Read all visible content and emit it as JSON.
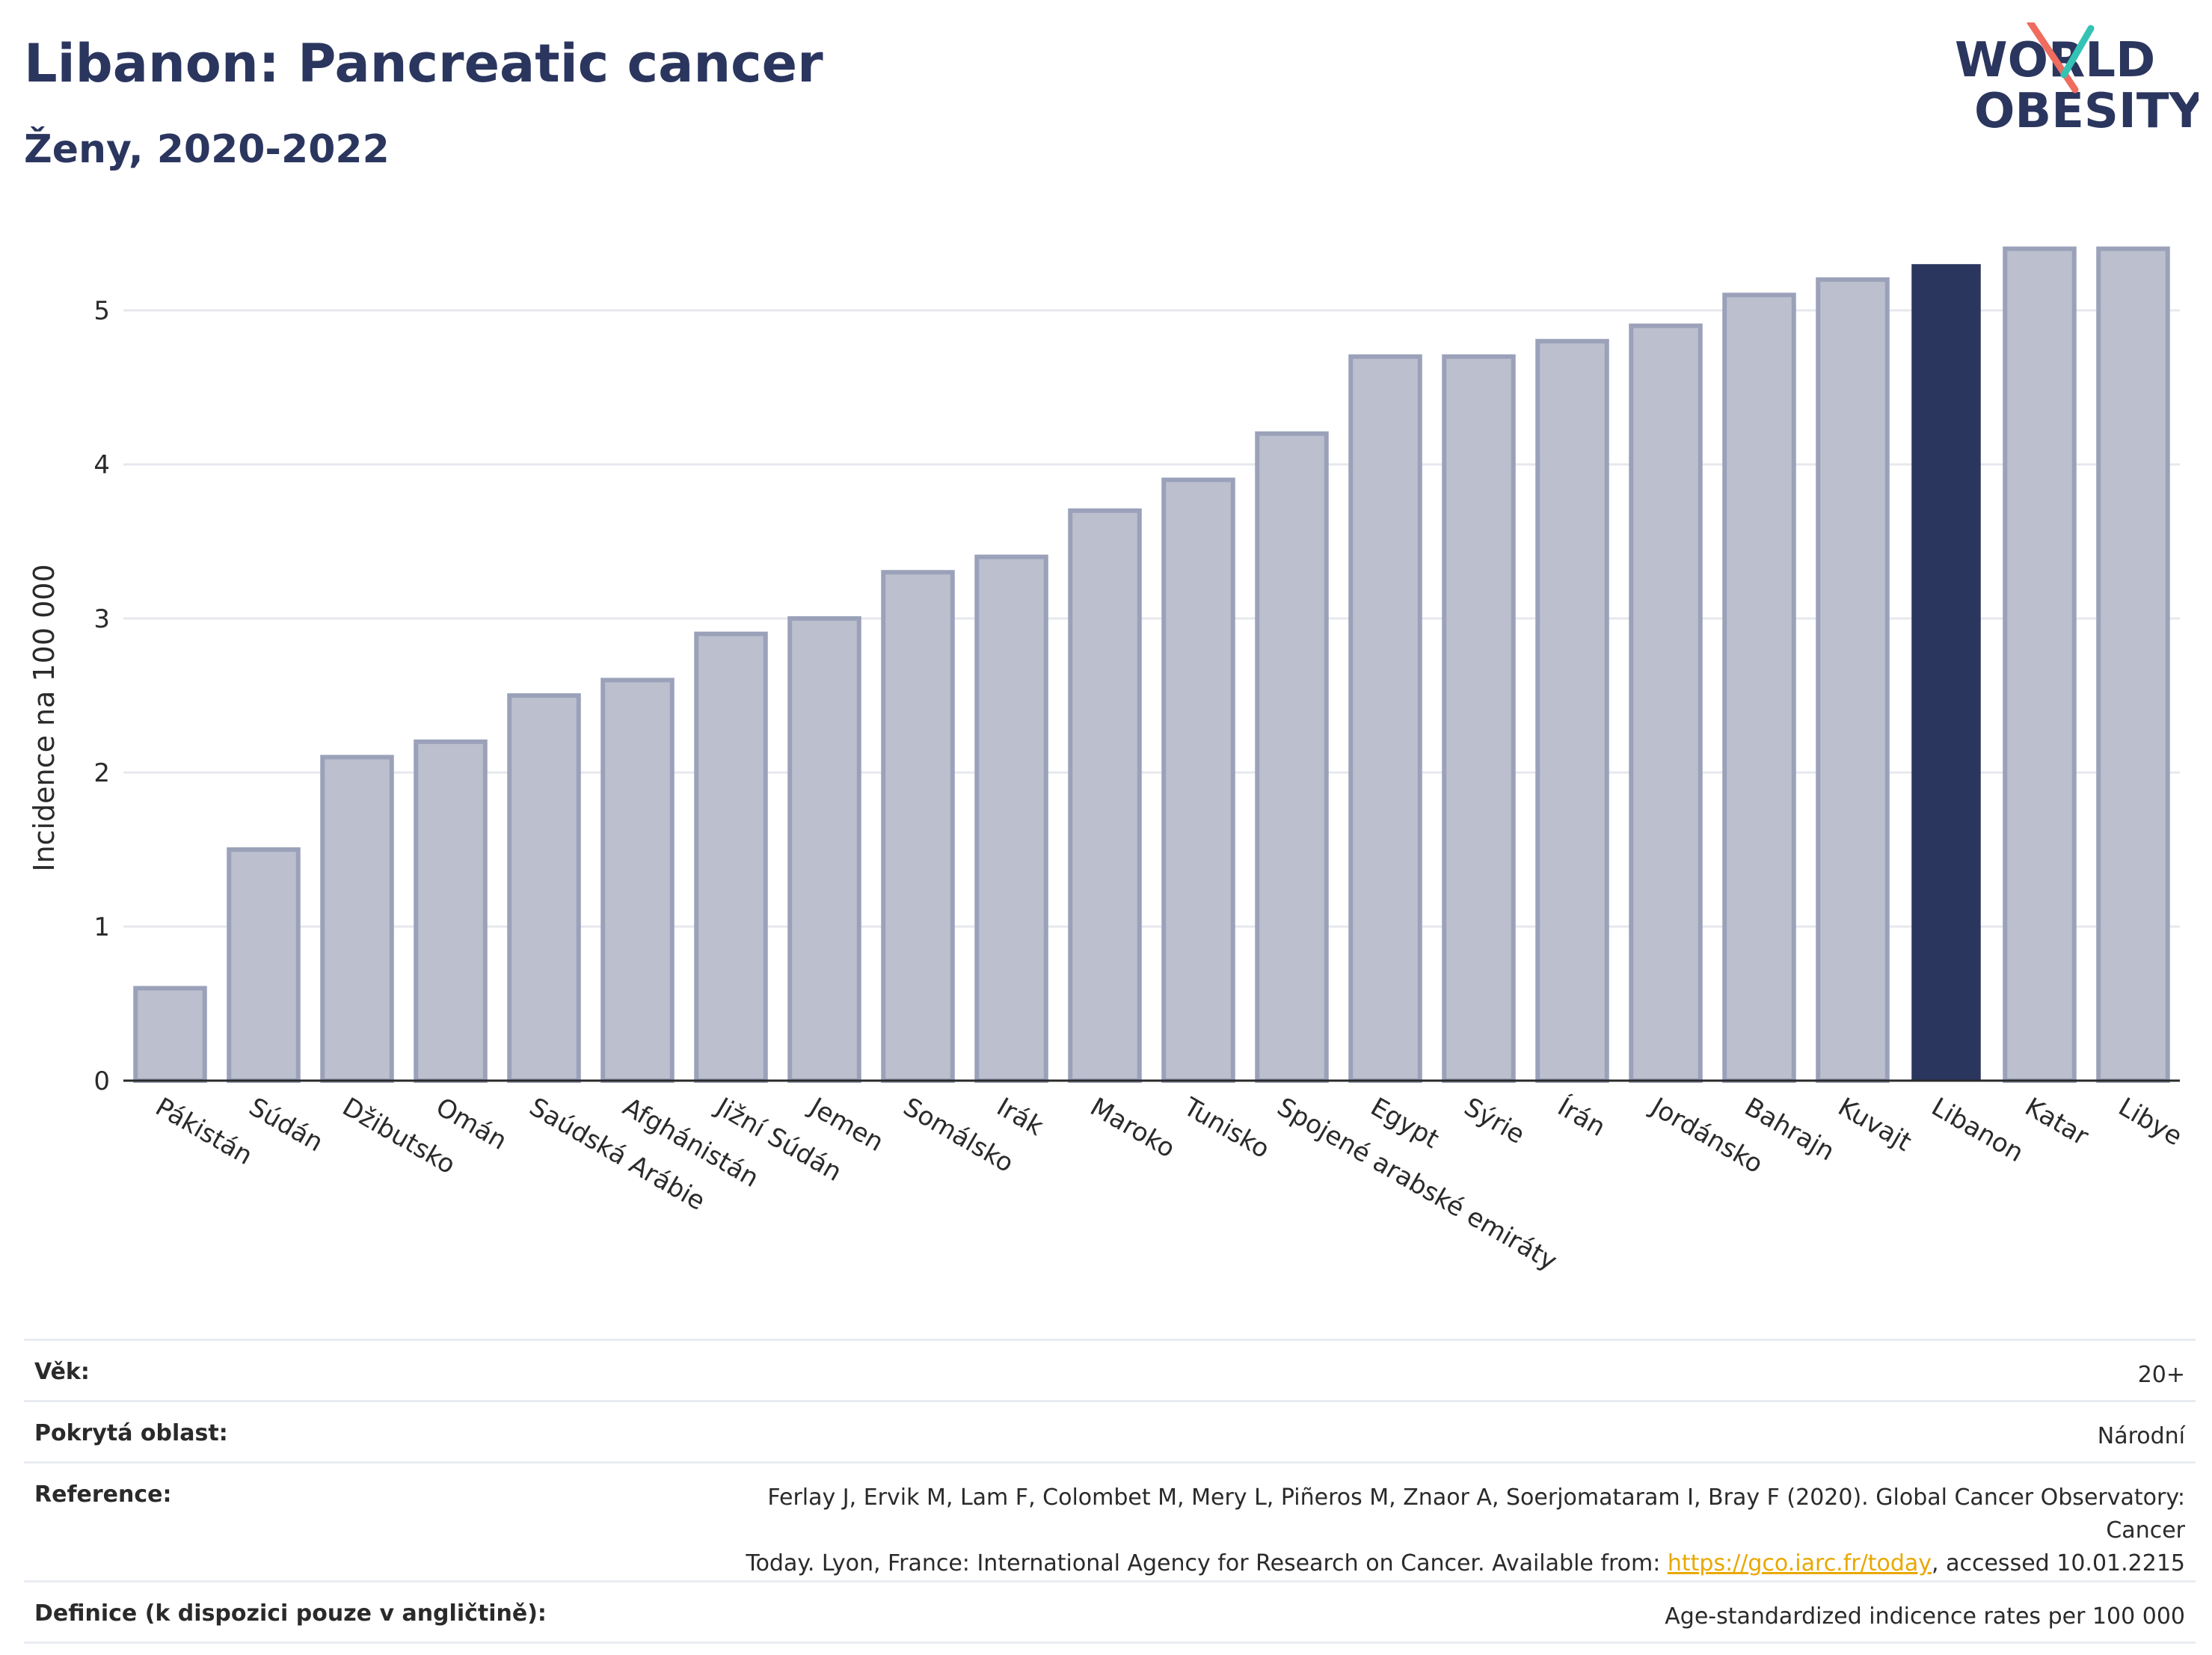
{
  "header": {
    "title": "Libanon: Pancreatic cancer",
    "subtitle": "Ženy, 2020-2022"
  },
  "logo": {
    "line1": "WORLD",
    "line2": "OBESITY"
  },
  "colors": {
    "bar": "#bcc0ce",
    "bar_stroke": "#9aa1b9",
    "highlight": "#2b365f",
    "title": "#2b365f",
    "grid": "#e6e8ee",
    "link": "#e9a800",
    "logo_teal": "#34c2b4",
    "logo_coral": "#ef6c5f"
  },
  "chart_data": {
    "type": "bar",
    "categories": [
      "Pákistán",
      "Súdán",
      "Džibutsko",
      "Omán",
      "Saúdská Arábie",
      "Afghánistán",
      "Jižní Súdán",
      "Jemen",
      "Somálsko",
      "Irák",
      "Maroko",
      "Tunisko",
      "Spojené arabské emiráty",
      "Egypt",
      "Sýrie",
      "Írán",
      "Jordánsko",
      "Bahrajn",
      "Kuvajt",
      "Libanon",
      "Katar",
      "Libye"
    ],
    "values": [
      0.6,
      1.5,
      2.1,
      2.2,
      2.5,
      2.6,
      2.9,
      3.0,
      3.3,
      3.4,
      3.7,
      3.9,
      4.2,
      4.7,
      4.7,
      4.8,
      4.9,
      5.1,
      5.2,
      5.3,
      5.4,
      5.4
    ],
    "highlight": "Libanon",
    "ylabel": "Incidence na 100 000",
    "xlabel": "",
    "ylim": [
      0,
      5.5
    ],
    "yticks": [
      0,
      1,
      2,
      3,
      4,
      5
    ],
    "grid": true
  },
  "info": [
    {
      "key": "Věk:",
      "value": "20+"
    },
    {
      "key": "Pokrytá oblast:",
      "value": "Národní"
    },
    {
      "key": "Reference:",
      "value_line1": "Ferlay J, Ervik M, Lam F, Colombet M, Mery L, Piñeros M, Znaor A, Soerjomataram I, Bray F (2020). Global Cancer Observatory: Cancer",
      "value_line2_pre": "Today. Lyon, France: International Agency for Research on Cancer. Available from: ",
      "link_text": "https://gco.iarc.fr/today",
      "value_line2_post": ", accessed 10.01.2215"
    },
    {
      "key": "Definice (k dispozici pouze v angličtině):",
      "value": "Age-standardized indicence rates per 100 000"
    }
  ]
}
